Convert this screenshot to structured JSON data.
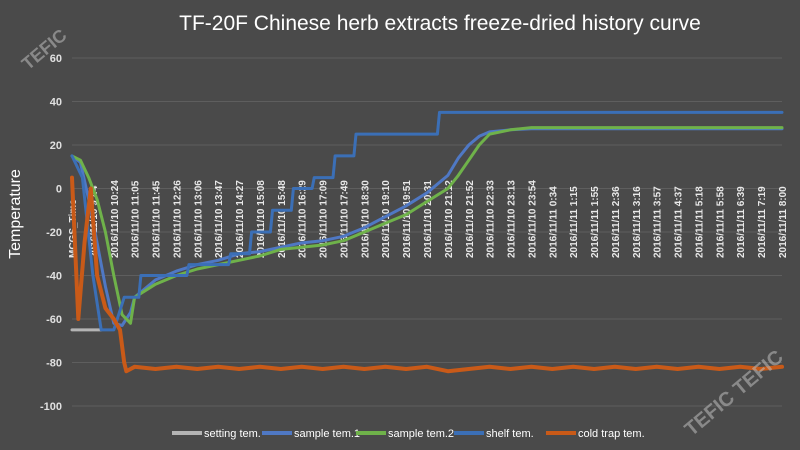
{
  "watermarks": [
    "TEFIC",
    "TEFIC TEFIC"
  ],
  "chart_data": {
    "type": "line",
    "title": "TF-20F Chinese herb extracts freeze-dried history curve",
    "ylabel": "Temperature",
    "xlabel": "",
    "ylim": [
      -100,
      60
    ],
    "yticks": [
      60,
      40,
      20,
      0,
      -20,
      -40,
      -60,
      -80,
      -100
    ],
    "grid": true,
    "legend_position": "bottom",
    "x_tick_labels": [
      "MCGS_Time",
      "2016/11/10 9:44",
      "2016/11/10 10:24",
      "2016/11/10 11:05",
      "2016/11/10 11:45",
      "2016/11/10 12:26",
      "2016/11/10 13:06",
      "2016/11/10 13:47",
      "2016/11/10 14:27",
      "2016/11/10 15:08",
      "2016/11/10 15:48",
      "2016/11/10 16:29",
      "2016/11/10 17:09",
      "2016/11/10 17:49",
      "2016/11/10 18:30",
      "2016/11/10 19:10",
      "2016/11/10 19:51",
      "2016/11/10 20:31",
      "2016/11/10 21:12",
      "2016/11/10 21:52",
      "2016/11/10 22:33",
      "2016/11/10 23:13",
      "2016/11/10 23:54",
      "2016/11/11 0:34",
      "2016/11/11 1:15",
      "2016/11/11 1:55",
      "2016/11/11 2:36",
      "2016/11/11 3:16",
      "2016/11/11 3:57",
      "2016/11/11 4:37",
      "2016/11/11 5:18",
      "2016/11/11 5:58",
      "2016/11/11 6:39",
      "2016/11/11 7:19",
      "2016/11/11 8:00"
    ],
    "series": [
      {
        "name": "setting tem.",
        "color": "#b4b4b4",
        "points": [
          [
            0,
            -65
          ],
          [
            1.2,
            -65
          ],
          [
            1.4,
            -65
          ]
        ]
      },
      {
        "name": "sample tem.1",
        "color": "#4f78c4",
        "points": [
          [
            0,
            15
          ],
          [
            0.4,
            12
          ],
          [
            0.8,
            -5
          ],
          [
            1.2,
            -25
          ],
          [
            1.6,
            -45
          ],
          [
            2.0,
            -62
          ],
          [
            2.4,
            -63
          ],
          [
            2.8,
            -57
          ],
          [
            3,
            -50
          ],
          [
            4,
            -42
          ],
          [
            5,
            -38
          ],
          [
            6,
            -35
          ],
          [
            7,
            -33
          ],
          [
            8,
            -30
          ],
          [
            9,
            -29
          ],
          [
            10,
            -27
          ],
          [
            11,
            -25
          ],
          [
            12,
            -24
          ],
          [
            13,
            -22
          ],
          [
            14,
            -18
          ],
          [
            15,
            -13
          ],
          [
            16,
            -8
          ],
          [
            17,
            -2
          ],
          [
            18,
            6
          ],
          [
            18.5,
            14
          ],
          [
            19,
            20
          ],
          [
            19.5,
            24
          ],
          [
            20,
            26
          ],
          [
            21,
            27
          ],
          [
            22,
            27.5
          ],
          [
            34,
            27.5
          ]
        ]
      },
      {
        "name": "sample tem.2",
        "color": "#6fb24a",
        "points": [
          [
            0,
            15
          ],
          [
            0.4,
            13
          ],
          [
            0.8,
            5
          ],
          [
            1.2,
            -5
          ],
          [
            1.6,
            -20
          ],
          [
            2.0,
            -40
          ],
          [
            2.4,
            -58
          ],
          [
            2.8,
            -62
          ],
          [
            3,
            -50
          ],
          [
            4,
            -44
          ],
          [
            5,
            -40
          ],
          [
            6,
            -37
          ],
          [
            7,
            -35
          ],
          [
            8,
            -33
          ],
          [
            9,
            -31
          ],
          [
            10,
            -28
          ],
          [
            11,
            -27
          ],
          [
            12,
            -26
          ],
          [
            13,
            -24
          ],
          [
            14,
            -20
          ],
          [
            15,
            -16
          ],
          [
            16,
            -12
          ],
          [
            17,
            -6
          ],
          [
            18,
            0
          ],
          [
            18.5,
            6
          ],
          [
            19,
            13
          ],
          [
            19.5,
            20
          ],
          [
            20,
            25
          ],
          [
            21,
            27
          ],
          [
            22,
            28
          ],
          [
            34,
            28
          ]
        ]
      },
      {
        "name": "shelf tem.",
        "color": "#3b6fb6",
        "points": [
          [
            0,
            15
          ],
          [
            0.5,
            5
          ],
          [
            1.0,
            -40
          ],
          [
            1.4,
            -65
          ],
          [
            2.0,
            -65
          ],
          [
            2.5,
            -50
          ],
          [
            3.2,
            -50
          ],
          [
            3.3,
            -40
          ],
          [
            5.5,
            -40
          ],
          [
            5.6,
            -35
          ],
          [
            7.5,
            -35
          ],
          [
            7.6,
            -30
          ],
          [
            8.5,
            -30
          ],
          [
            8.6,
            -20
          ],
          [
            9.5,
            -20
          ],
          [
            9.6,
            -10
          ],
          [
            10.5,
            -10
          ],
          [
            10.6,
            0
          ],
          [
            11.5,
            0
          ],
          [
            11.6,
            5
          ],
          [
            12.5,
            5
          ],
          [
            12.6,
            15
          ],
          [
            13.5,
            15
          ],
          [
            13.6,
            25
          ],
          [
            17.5,
            25
          ],
          [
            17.6,
            35
          ],
          [
            34,
            35
          ]
        ]
      },
      {
        "name": "cold trap tem.",
        "color": "#c95a18",
        "points": [
          [
            0,
            5
          ],
          [
            0.3,
            -60
          ],
          [
            0.6,
            -25
          ],
          [
            0.9,
            0
          ],
          [
            1.2,
            -40
          ],
          [
            1.6,
            -55
          ],
          [
            2.0,
            -60
          ],
          [
            2.3,
            -65
          ],
          [
            2.5,
            -80
          ],
          [
            2.6,
            -84
          ],
          [
            3,
            -82
          ],
          [
            4,
            -83
          ],
          [
            5,
            -82
          ],
          [
            6,
            -83
          ],
          [
            7,
            -82
          ],
          [
            8,
            -83
          ],
          [
            9,
            -82
          ],
          [
            10,
            -83
          ],
          [
            11,
            -82
          ],
          [
            12,
            -83
          ],
          [
            13,
            -82
          ],
          [
            14,
            -83
          ],
          [
            15,
            -82
          ],
          [
            16,
            -83
          ],
          [
            17,
            -82
          ],
          [
            18,
            -84
          ],
          [
            19,
            -83
          ],
          [
            20,
            -82
          ],
          [
            21,
            -83
          ],
          [
            22,
            -82
          ],
          [
            23,
            -83
          ],
          [
            24,
            -82
          ],
          [
            25,
            -83
          ],
          [
            26,
            -82
          ],
          [
            27,
            -83
          ],
          [
            28,
            -82
          ],
          [
            29,
            -83
          ],
          [
            30,
            -82
          ],
          [
            31,
            -83
          ],
          [
            32,
            -82
          ],
          [
            33,
            -83
          ],
          [
            34,
            -82
          ]
        ]
      }
    ]
  }
}
